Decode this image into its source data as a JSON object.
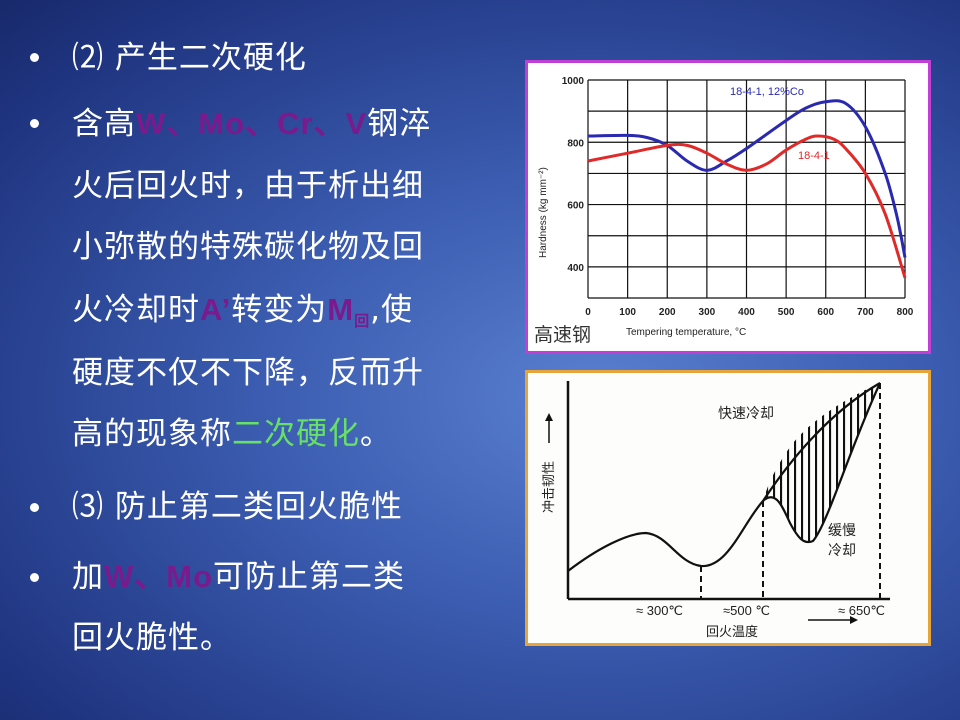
{
  "left_text": {
    "line1": "⑵ 产生二次硬化",
    "line2_a": "含高",
    "line2_b": "W、Mo、Cr、V",
    "line2_c": "钢淬",
    "line3": "火后回火时，由于析出细",
    "line4": "小弥散的特殊碳化物及回",
    "line5_a": "火冷却时",
    "line5_b": "A’",
    "line5_c": "转变为",
    "line5_d": "M",
    "line5_sub": "回",
    "line5_e": ",使",
    "line6": "硬度不仅不下降，反而升",
    "line7_a": "高的现象称",
    "line7_b": "二次硬化",
    "line7_c": "。",
    "line8": "⑶ 防止第二类回火脆性",
    "line9_a": "加",
    "line9_b": "W、Mo",
    "line9_c": "可防止第二类",
    "line10": "回火脆性。"
  },
  "colors": {
    "highlight_purple": "#7b1a8c",
    "highlight_green": "#66e066",
    "series_blue": "#2a2ab0",
    "series_red": "#e02a2a"
  },
  "chart_data": [
    {
      "type": "line",
      "caption": "高速钢",
      "xlabel": "Tempering temperature, °C",
      "ylabel": "Hardness (kg mm⁻²)",
      "xlim": [
        0,
        800
      ],
      "ylim": [
        300,
        1000
      ],
      "xticks": [
        0,
        100,
        200,
        300,
        400,
        500,
        600,
        700,
        800
      ],
      "yticks": [
        400,
        600,
        800,
        1000
      ],
      "grid": true,
      "series": [
        {
          "name": "18-4-1, 12%Co",
          "color": "#2a2ab0",
          "x": [
            0,
            100,
            150,
            200,
            250,
            300,
            350,
            400,
            500,
            550,
            600,
            650,
            700,
            750,
            780,
            800
          ],
          "y": [
            820,
            822,
            815,
            790,
            740,
            710,
            740,
            780,
            870,
            910,
            930,
            925,
            850,
            700,
            560,
            430
          ]
        },
        {
          "name": "18-4-1",
          "color": "#e02a2a",
          "x": [
            0,
            100,
            200,
            250,
            300,
            350,
            400,
            450,
            500,
            550,
            580,
            620,
            650,
            700,
            750,
            800
          ],
          "y": [
            740,
            765,
            790,
            790,
            765,
            730,
            710,
            730,
            775,
            810,
            820,
            810,
            780,
            700,
            570,
            365
          ]
        }
      ]
    },
    {
      "type": "diagram",
      "ylabel": "冲击韧性",
      "xlabel": "回火温度",
      "xticks": [
        "≈ 300℃",
        "≈500 ℃",
        "≈ 650℃"
      ],
      "annotations": [
        "快速冷却",
        "缓慢",
        "冷却"
      ]
    }
  ]
}
